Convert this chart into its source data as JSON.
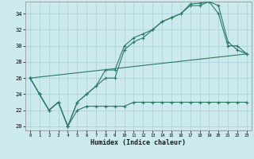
{
  "xlabel": "Humidex (Indice chaleur)",
  "xlim": [
    -0.5,
    23.5
  ],
  "ylim": [
    19.5,
    35.5
  ],
  "yticks": [
    20,
    22,
    24,
    26,
    28,
    30,
    32,
    34
  ],
  "xticks": [
    0,
    1,
    2,
    3,
    4,
    5,
    6,
    7,
    8,
    9,
    10,
    11,
    12,
    13,
    14,
    15,
    16,
    17,
    18,
    19,
    20,
    21,
    22,
    23
  ],
  "background_color": "#cce9ee",
  "grid_color": "#aacfd8",
  "line_color": "#2a7a65",
  "line1_y": [
    26,
    24,
    22,
    23,
    20,
    22,
    22.5,
    22.5,
    22.5,
    22.5,
    22.5,
    23,
    23,
    23,
    23,
    23,
    23,
    23,
    23,
    23,
    23,
    23,
    23,
    23
  ],
  "line2_y": [
    26,
    24,
    22,
    23,
    20,
    23,
    24,
    25,
    27,
    27,
    30,
    31,
    31.5,
    32,
    33,
    33.5,
    34,
    35,
    35,
    35.5,
    34,
    30,
    30,
    29
  ],
  "line3_y": [
    26,
    24,
    22,
    23,
    20,
    23,
    24,
    25,
    26,
    26,
    29.5,
    30.5,
    31,
    32,
    33,
    33.5,
    34,
    35.2,
    35.3,
    35.5,
    35,
    30.5,
    29.5,
    29
  ]
}
